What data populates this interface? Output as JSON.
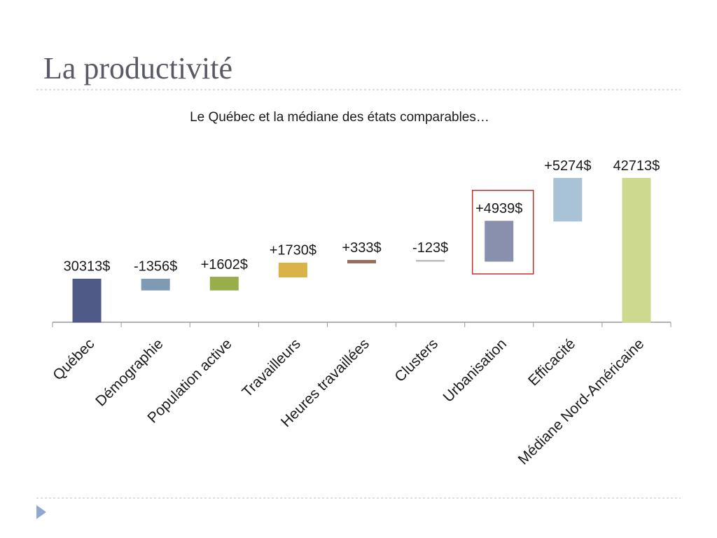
{
  "slide_title": "La productivité",
  "chart_data": {
    "type": "waterfall",
    "title": "Le Québec et la médiane des états comparables…",
    "categories": [
      "Québec",
      "Démographie",
      "Population active",
      "Travailleurs",
      "Heures travaillées",
      "Clusters",
      "Urbanisation",
      "Efficacité",
      "Médiane Nord-Américaine"
    ],
    "values": [
      30313,
      -1356,
      1602,
      1730,
      333,
      -123,
      4939,
      5274,
      42713
    ],
    "value_labels": [
      "30313$",
      "-1356$",
      "+1602$",
      "+1730$",
      "+333$",
      "-123$",
      "+4939$",
      "+5274$",
      "42713$"
    ],
    "colors": [
      "#4f5b86",
      "#7f9ab3",
      "#98ae4a",
      "#d9b347",
      "#9a6b5a",
      "#b8b8c0",
      "#8890ae",
      "#a8c2d6",
      "#ccd98e"
    ],
    "ylim": [
      25000,
      45000
    ]
  }
}
